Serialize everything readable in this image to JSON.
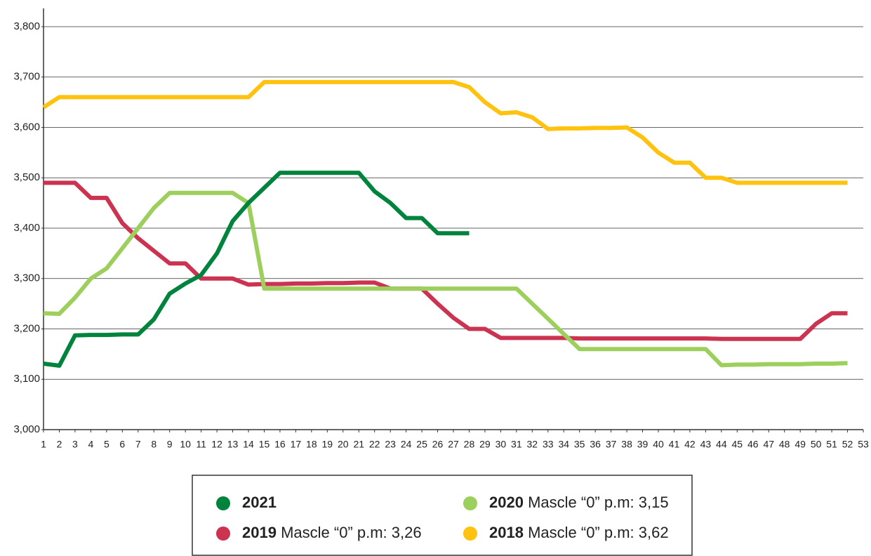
{
  "chart_data": {
    "type": "line",
    "x": [
      1,
      2,
      3,
      4,
      5,
      6,
      7,
      8,
      9,
      10,
      11,
      12,
      13,
      14,
      15,
      16,
      17,
      18,
      19,
      20,
      21,
      22,
      23,
      24,
      25,
      26,
      27,
      28,
      29,
      30,
      31,
      32,
      33,
      34,
      35,
      36,
      37,
      38,
      39,
      40,
      41,
      42,
      43,
      44,
      45,
      46,
      47,
      48,
      49,
      50,
      51,
      52
    ],
    "xlim": [
      1,
      53
    ],
    "xticks": [
      1,
      2,
      3,
      4,
      5,
      6,
      7,
      8,
      9,
      10,
      11,
      12,
      13,
      14,
      15,
      16,
      17,
      18,
      19,
      20,
      21,
      22,
      23,
      24,
      25,
      26,
      27,
      28,
      29,
      30,
      31,
      32,
      33,
      34,
      35,
      36,
      37,
      38,
      39,
      40,
      41,
      42,
      43,
      44,
      45,
      46,
      47,
      48,
      49,
      50,
      51,
      52,
      53
    ],
    "ylim": [
      3.0,
      3.8
    ],
    "yticks": [
      {
        "value": 3.0,
        "label": "3,000"
      },
      {
        "value": 3.1,
        "label": "3,100"
      },
      {
        "value": 3.2,
        "label": "3,200"
      },
      {
        "value": 3.3,
        "label": "3,300"
      },
      {
        "value": 3.4,
        "label": "3,400"
      },
      {
        "value": 3.5,
        "label": "3,500"
      },
      {
        "value": 3.6,
        "label": "3,600"
      },
      {
        "value": 3.7,
        "label": "3,700"
      },
      {
        "value": 3.8,
        "label": "3,800"
      }
    ],
    "grid": true,
    "series": [
      {
        "name": "2021",
        "color": "#00843d",
        "values": [
          3.131,
          3.127,
          3.187,
          3.188,
          3.188,
          3.189,
          3.189,
          3.219,
          3.27,
          3.29,
          3.307,
          3.35,
          3.414,
          3.45,
          3.48,
          3.51,
          3.51,
          3.51,
          3.51,
          3.51,
          3.51,
          3.473,
          3.45,
          3.42,
          3.42,
          3.39,
          3.39,
          3.39,
          null,
          null,
          null,
          null,
          null,
          null,
          null,
          null,
          null,
          null,
          null,
          null,
          null,
          null,
          null,
          null,
          null,
          null,
          null,
          null,
          null,
          null,
          null,
          null
        ]
      },
      {
        "name": "2020",
        "legend_text": "Mascle “0” p.m: 3,15",
        "color": "#9ccf5b",
        "values": [
          3.231,
          3.23,
          3.262,
          3.3,
          3.32,
          3.36,
          3.4,
          3.44,
          3.47,
          3.47,
          3.47,
          3.47,
          3.47,
          3.45,
          3.28,
          3.28,
          3.28,
          3.28,
          3.28,
          3.28,
          3.28,
          3.28,
          3.28,
          3.28,
          3.28,
          3.28,
          3.28,
          3.28,
          3.28,
          3.28,
          3.28,
          3.25,
          3.22,
          3.19,
          3.16,
          3.16,
          3.16,
          3.16,
          3.16,
          3.16,
          3.16,
          3.16,
          3.16,
          3.128,
          3.129,
          3.129,
          3.13,
          3.13,
          3.13,
          3.131,
          3.131,
          3.132
        ]
      },
      {
        "name": "2019",
        "legend_text": "Mascle “0” p.m: 3,26",
        "color": "#cc3350",
        "values": [
          3.49,
          3.49,
          3.49,
          3.46,
          3.46,
          3.41,
          3.38,
          3.355,
          3.33,
          3.33,
          3.3,
          3.3,
          3.3,
          3.288,
          3.289,
          3.289,
          3.29,
          3.29,
          3.291,
          3.291,
          3.292,
          3.292,
          3.28,
          3.28,
          3.28,
          3.25,
          3.222,
          3.2,
          3.2,
          3.182,
          3.182,
          3.182,
          3.182,
          3.182,
          3.181,
          3.181,
          3.181,
          3.181,
          3.181,
          3.181,
          3.181,
          3.181,
          3.181,
          3.18,
          3.18,
          3.18,
          3.18,
          3.18,
          3.18,
          3.21,
          3.231,
          3.231
        ]
      },
      {
        "name": "2018",
        "legend_text": "Mascle “0” p.m: 3,62",
        "color": "#ffc20e",
        "values": [
          3.64,
          3.66,
          3.66,
          3.66,
          3.66,
          3.66,
          3.66,
          3.66,
          3.66,
          3.66,
          3.66,
          3.66,
          3.66,
          3.66,
          3.69,
          3.69,
          3.69,
          3.69,
          3.69,
          3.69,
          3.69,
          3.69,
          3.69,
          3.69,
          3.69,
          3.69,
          3.69,
          3.68,
          3.65,
          3.628,
          3.63,
          3.62,
          3.597,
          3.598,
          3.598,
          3.599,
          3.599,
          3.6,
          3.58,
          3.55,
          3.53,
          3.53,
          3.5,
          3.5,
          3.49,
          3.49,
          3.49,
          3.49,
          3.49,
          3.49,
          3.49,
          3.49
        ]
      }
    ]
  }
}
